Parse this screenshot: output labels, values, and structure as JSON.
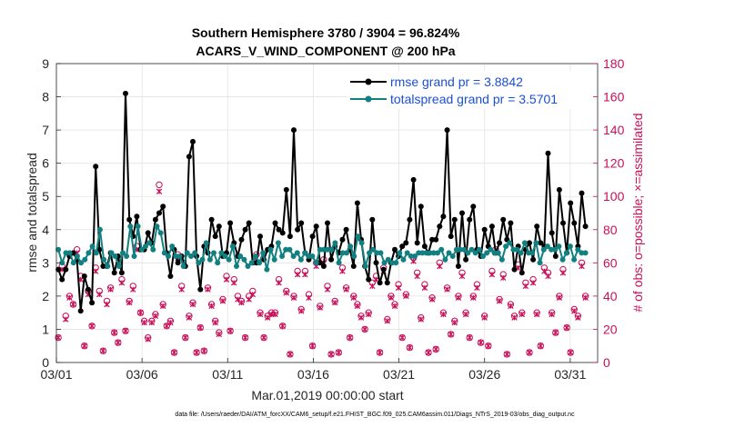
{
  "chart_data": {
    "type": "line",
    "title": [
      "Southern Hemisphere 3780 / 3904 = 96.824%",
      "ACARS_V_WIND_COMPONENT @ 200 hPa"
    ],
    "xlabel": "Mar.01,2019 00:00:00 start",
    "ylabel_left": "rmse and totalspread",
    "ylabel_right": "# of obs: o=possible; ×=assimilated",
    "xlim": [
      0,
      31.6
    ],
    "ylim_left": [
      0,
      9
    ],
    "ylim_right": [
      0,
      180
    ],
    "x_ticks": [
      {
        "value": 0,
        "label": "03/01"
      },
      {
        "value": 5,
        "label": "03/06"
      },
      {
        "value": 10,
        "label": "03/11"
      },
      {
        "value": 15,
        "label": "03/16"
      },
      {
        "value": 20,
        "label": "03/21"
      },
      {
        "value": 25,
        "label": "03/26"
      },
      {
        "value": 30,
        "label": "03/31"
      }
    ],
    "y_ticks_left": [
      "0",
      "1",
      "2",
      "3",
      "4",
      "5",
      "6",
      "7",
      "8",
      "9"
    ],
    "y_ticks_right": [
      "0",
      "20",
      "40",
      "60",
      "80",
      "100",
      "120",
      "140",
      "160",
      "180"
    ],
    "grid": true,
    "legend_position": "top-right",
    "series": [
      {
        "name": "rmse grand pr = 3.8842",
        "color": "#000000",
        "axis": "left",
        "values": [
          2.8,
          2.5,
          2.8,
          3.2,
          3.3,
          3.1,
          1.55,
          2.6,
          2.2,
          1.8,
          5.9,
          3.4,
          2.9,
          2.9,
          3.3,
          2.7,
          3.2,
          2.7,
          8.1,
          4.3,
          3.8,
          4.4,
          3.4,
          3.4,
          3.9,
          3.6,
          4.3,
          4.5,
          4.7,
          3.3,
          2.6,
          3.4,
          3.0,
          3.2,
          2.9,
          6.2,
          6.65,
          3.2,
          2.2,
          3.5,
          3.3,
          4.3,
          3.8,
          4.1,
          3.2,
          3.3,
          4.2,
          3.6,
          3.2,
          3.7,
          4.0,
          4.2,
          3.0,
          3.0,
          3.8,
          3.1,
          3.4,
          3.5,
          4.2,
          4.0,
          3.9,
          5.2,
          3.8,
          7.0,
          4.0,
          4.2,
          3.3,
          3.1,
          3.8,
          4.1,
          3.0,
          2.9,
          4.2,
          3.1,
          3.5,
          3.3,
          3.7,
          4.0,
          3.4,
          2.9,
          4.8,
          3.7,
          2.9,
          2.5,
          4.3,
          3.0,
          2.4,
          2.8,
          2.4,
          3.0,
          3.4,
          3.2,
          3.5,
          3.6,
          4.3,
          5.5,
          3.6,
          4.7,
          3.5,
          3.3,
          3.7,
          3.7,
          4.1,
          4.4,
          7.0,
          3.8,
          4.3,
          2.9,
          4.5,
          3.1,
          4.3,
          4.7,
          3.4,
          3.2,
          4.0,
          3.5,
          4.1,
          3.3,
          3.6,
          4.3,
          3.7,
          4.2,
          2.8,
          3.5,
          2.7,
          3.4,
          3.6,
          3.1,
          4.1,
          3.6,
          3.5,
          6.3,
          3.9,
          3.2,
          5.2,
          4.2,
          3.3,
          4.8,
          4.2,
          3.5,
          5.1,
          4.1
        ]
      },
      {
        "name": "totalspread grand pr = 3.5701",
        "color": "#128080",
        "axis": "left",
        "values": [
          3.4,
          3.0,
          3.3,
          3.3,
          3.0,
          3.2,
          3.0,
          3.1,
          3.3,
          3.5,
          3.3,
          4.0,
          3.1,
          2.9,
          3.3,
          3.2,
          2.9,
          3.3,
          3.2,
          4.1,
          3.2,
          4.1,
          3.4,
          3.5,
          3.6,
          3.4,
          4.1,
          3.9,
          3.3,
          3.2,
          3.5,
          3.2,
          3.2,
          2.9,
          3.3,
          3.2,
          3.3,
          3.0,
          3.1,
          3.6,
          3.1,
          3.3,
          3.0,
          3.3,
          3.2,
          3.1,
          3.5,
          2.9,
          3.2,
          3.1,
          2.9,
          3.0,
          3.2,
          3.0,
          3.3,
          2.8,
          3.4,
          3.1,
          3.6,
          3.2,
          3.4,
          3.4,
          3.2,
          3.3,
          3.1,
          3.3,
          3.2,
          3.2,
          3.0,
          3.4,
          3.4,
          3.4,
          3.4,
          3.6,
          3.0,
          3.3,
          3.3,
          3.5,
          3.2,
          3.8,
          3.6,
          2.9,
          3.3,
          3.4,
          3.3,
          3.3,
          3.0,
          3.1,
          3.0,
          3.0,
          3.3,
          3.1,
          3.3,
          3.2,
          3.2,
          3.3,
          3.3,
          3.3,
          3.3,
          3.3,
          3.3,
          3.4,
          3.1,
          3.3,
          3.2,
          3.4,
          3.4,
          3.4,
          3.3,
          3.4,
          3.3,
          3.4,
          3.2,
          3.3,
          3.4,
          3.3,
          3.3,
          3.1,
          3.5,
          3.6,
          3.4,
          3.4,
          3.3,
          3.6,
          3.3,
          3.3,
          3.6,
          3.0,
          3.4,
          3.5,
          3.4,
          3.4,
          3.5,
          3.1,
          3.3,
          3.5,
          3.1,
          3.4,
          3.3,
          3.3
        ]
      },
      {
        "name": "obs possible",
        "color": "#c8105a",
        "axis": "right",
        "marker": "circle",
        "values": [
          15,
          58,
          28,
          40,
          35,
          68,
          52,
          10,
          43,
          22,
          57,
          43,
          7,
          37,
          45,
          18,
          12,
          50,
          19,
          37,
          46,
          70,
          30,
          25,
          15,
          25,
          29,
          107,
          35,
          22,
          25,
          6,
          65,
          46,
          15,
          28,
          36,
          6,
          21,
          7,
          45,
          35,
          25,
          18,
          38,
          52,
          19,
          50,
          40,
          37,
          15,
          40,
          43,
          65,
          30,
          15,
          28,
          30,
          30,
          50,
          22,
          43,
          5,
          40,
          55,
          32,
          55,
          41,
          10,
          60,
          34,
          62,
          46,
          5,
          37,
          6,
          57,
          45,
          15,
          40,
          35,
          28,
          20,
          30,
          48,
          52,
          6,
          57,
          26,
          40,
          35,
          47,
          15,
          41,
          9,
          63,
          54,
          27,
          47,
          6,
          39,
          8,
          60,
          30,
          45,
          17,
          25,
          40,
          54,
          30,
          15,
          40,
          47,
          12,
          28,
          10,
          55,
          68,
          38,
          53,
          5,
          35,
          28,
          59,
          30,
          48,
          6,
          50,
          30,
          10,
          57,
          54,
          30,
          18,
          40,
          56,
          21,
          6,
          32,
          28,
          60,
          40
        ]
      },
      {
        "name": "obs assimilated",
        "color": "#c8105a",
        "axis": "right",
        "marker": "star",
        "values": [
          15,
          56,
          26,
          39,
          35,
          66,
          50,
          10,
          41,
          22,
          55,
          41,
          7,
          35,
          44,
          18,
          12,
          48,
          19,
          36,
          44,
          68,
          30,
          24,
          14,
          24,
          28,
          103,
          34,
          22,
          24,
          6,
          63,
          44,
          15,
          27,
          35,
          6,
          21,
          7,
          44,
          34,
          24,
          17,
          37,
          50,
          19,
          48,
          38,
          36,
          15,
          38,
          41,
          63,
          29,
          15,
          27,
          29,
          29,
          48,
          22,
          42,
          5,
          39,
          53,
          31,
          53,
          39,
          10,
          58,
          33,
          60,
          44,
          5,
          36,
          6,
          55,
          44,
          15,
          39,
          34,
          27,
          20,
          29,
          46,
          50,
          6,
          55,
          25,
          39,
          34,
          45,
          15,
          40,
          9,
          61,
          52,
          26,
          45,
          6,
          38,
          8,
          58,
          29,
          44,
          17,
          24,
          39,
          52,
          29,
          15,
          39,
          45,
          12,
          27,
          10,
          53,
          66,
          37,
          51,
          5,
          34,
          27,
          57,
          29,
          46,
          6,
          48,
          29,
          10,
          55,
          52,
          29,
          18,
          39,
          54,
          21,
          6,
          31,
          27,
          58,
          39
        ]
      }
    ],
    "footer": "data file: /Users/raeder/DAI/ATM_forcXX/CAM6_setup/f.e21.FHIST_BGC.f09_025.CAM6assim.011/Diags_NTrS_2019-03/obs_diag_output.nc"
  }
}
